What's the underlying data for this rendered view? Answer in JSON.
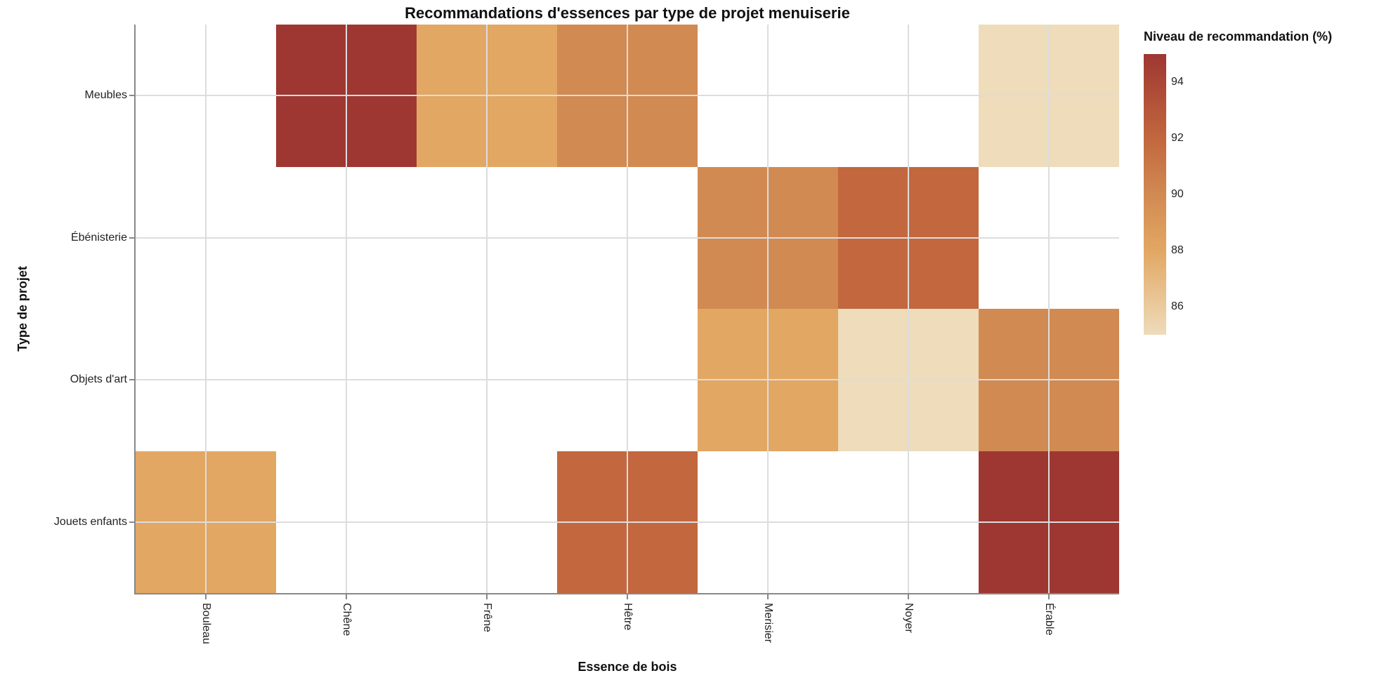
{
  "chart_data": {
    "type": "heatmap",
    "title": "Recommandations d'essences par type de projet menuiserie",
    "xlabel": "Essence de bois",
    "ylabel": "Type de projet",
    "x_categories": [
      "Bouleau",
      "Chêne",
      "Frêne",
      "Hêtre",
      "Merisier",
      "Noyer",
      "Érable"
    ],
    "y_categories": [
      "Meubles",
      "Ébénisterie",
      "Objets d'art",
      "Jouets enfants"
    ],
    "legend": {
      "title": "Niveau de recommandation (%)",
      "domain": [
        85,
        95
      ],
      "ticks": [
        94,
        92,
        90,
        88,
        86
      ],
      "position": "right"
    },
    "palette": {
      "85": "#eedcbb",
      "88": "#e2a763",
      "90": "#d18a52",
      "92": "#c2673e",
      "95": "#9e3732"
    },
    "grid": true,
    "cells": [
      {
        "x": "Chêne",
        "y": "Meubles",
        "value": 95
      },
      {
        "x": "Frêne",
        "y": "Meubles",
        "value": 88
      },
      {
        "x": "Hêtre",
        "y": "Meubles",
        "value": 90
      },
      {
        "x": "Érable",
        "y": "Meubles",
        "value": 85
      },
      {
        "x": "Merisier",
        "y": "Ébénisterie",
        "value": 90
      },
      {
        "x": "Noyer",
        "y": "Ébénisterie",
        "value": 92
      },
      {
        "x": "Merisier",
        "y": "Objets d'art",
        "value": 88
      },
      {
        "x": "Noyer",
        "y": "Objets d'art",
        "value": 85
      },
      {
        "x": "Érable",
        "y": "Objets d'art",
        "value": 90
      },
      {
        "x": "Bouleau",
        "y": "Jouets enfants",
        "value": 88
      },
      {
        "x": "Hêtre",
        "y": "Jouets enfants",
        "value": 92
      },
      {
        "x": "Érable",
        "y": "Jouets enfants",
        "value": 95
      }
    ]
  },
  "colors": {
    "background": "#ffffff",
    "axis_line": "#888888",
    "gridline": "#dddddd",
    "label_text": "#222222"
  }
}
